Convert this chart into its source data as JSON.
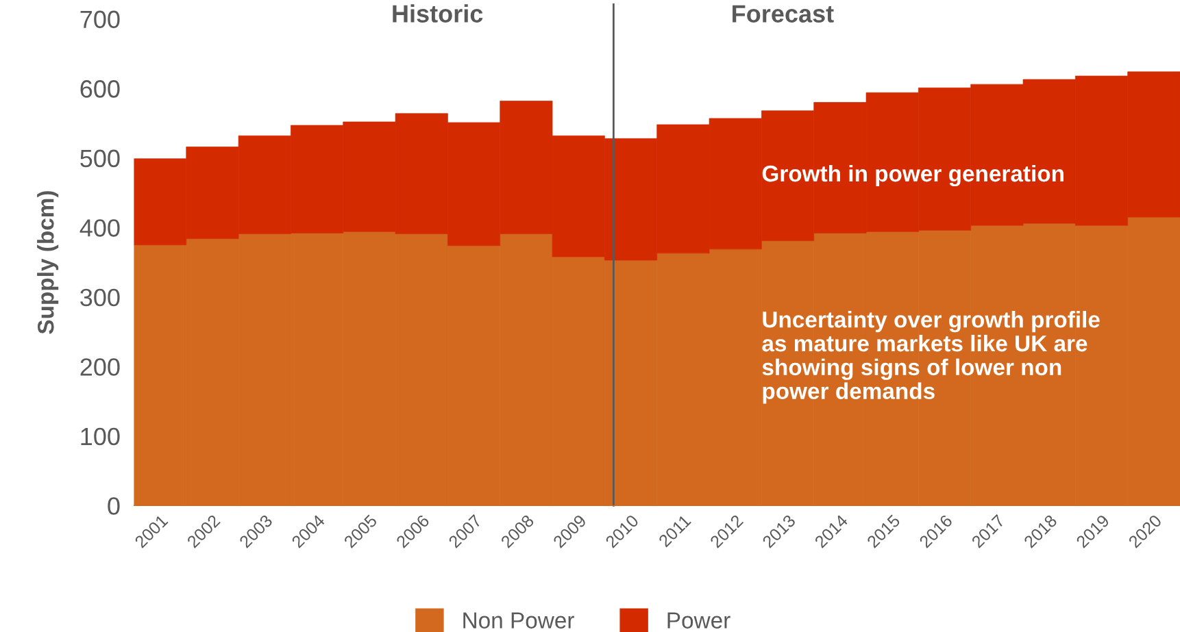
{
  "chart_data": {
    "type": "bar",
    "stacked": true,
    "ylabel": "Supply (bcm)",
    "categories": [
      "2001",
      "2002",
      "2003",
      "2004",
      "2005",
      "2006",
      "2007",
      "2008",
      "2009",
      "2010",
      "2011",
      "2012",
      "2013",
      "2014",
      "2015",
      "2016",
      "2017",
      "2018",
      "2019",
      "2020"
    ],
    "series": [
      {
        "name": "Non Power",
        "color": "#d2691f",
        "values": [
          375,
          384,
          391,
          392,
          394,
          391,
          374,
          391,
          358,
          353,
          363,
          369,
          381,
          392,
          394,
          396,
          403,
          406,
          403,
          415
        ]
      },
      {
        "name": "Power",
        "color": "#d42a00",
        "values": [
          124,
          132,
          141,
          155,
          158,
          173,
          177,
          191,
          174,
          175,
          185,
          188,
          187,
          188,
          200,
          205,
          203,
          207,
          215,
          209
        ]
      }
    ],
    "ylim": [
      0,
      700
    ],
    "yticks": [
      0,
      100,
      200,
      300,
      400,
      500,
      600,
      700
    ],
    "grid": false,
    "legend": "bottom",
    "ref_lines": [
      {
        "axis": "x",
        "value": "2010",
        "color": "#595959"
      }
    ],
    "annotations": [
      "Historic",
      "Forecast",
      "Growth in power generation",
      "Uncertainty over growth profile as mature markets like UK are showing signs of lower non power demands"
    ]
  }
}
